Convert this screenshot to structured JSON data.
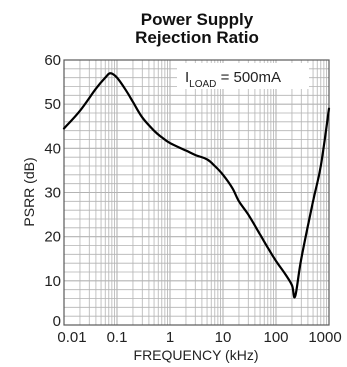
{
  "chart_data": {
    "type": "line",
    "title_lines": [
      "Power Supply",
      "Rejection Ratio"
    ],
    "xlabel": "FREQUENCY (kHz)",
    "ylabel": "PSRR (dB)",
    "xscale": "log",
    "xlim": [
      0.01,
      1000
    ],
    "ylim": [
      0,
      60
    ],
    "grid": true,
    "x_ticks": [
      0.01,
      0.1,
      1,
      10,
      100,
      1000
    ],
    "x_tick_labels": [
      "0.01",
      "0.1",
      "1",
      "10",
      "100",
      "1000"
    ],
    "y_ticks": [
      0,
      10,
      20,
      30,
      40,
      50,
      60
    ],
    "y_tick_labels": [
      "0",
      "10",
      "20",
      "30",
      "40",
      "50",
      "60"
    ],
    "annotation": {
      "main": "I",
      "sub": "LOAD",
      "rest": " = 500mA",
      "placement": "top-right"
    },
    "series": [
      {
        "x": [
          0.01,
          0.02,
          0.04,
          0.06,
          0.075,
          0.1,
          0.15,
          0.2,
          0.3,
          0.5,
          0.7,
          1,
          2,
          3,
          5,
          7,
          10,
          15,
          20,
          30,
          50,
          70,
          100,
          150,
          200,
          230,
          300,
          500,
          700,
          1000
        ],
        "y": [
          44.5,
          48.5,
          53.5,
          56,
          57,
          56,
          53,
          50.5,
          47,
          44,
          42.5,
          41.2,
          39.5,
          38.5,
          37.5,
          36,
          34,
          31,
          28,
          25,
          20.5,
          17.5,
          14.5,
          11.5,
          9,
          6.5,
          15,
          28,
          36,
          49
        ]
      }
    ],
    "colors": {
      "background": "#ffffff",
      "grid": "#b3b3b3",
      "line": "#000000",
      "frame": "#5a5a5a"
    }
  }
}
